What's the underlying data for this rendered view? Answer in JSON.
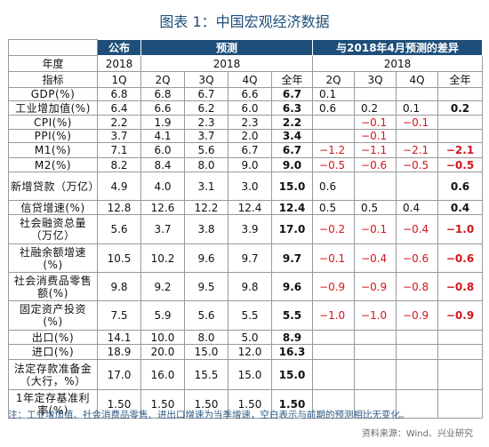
{
  "title": "图表 1：中国宏观经济数据",
  "header": {
    "group_labels": [
      "公布",
      "预测",
      "与2018年4月预测的差异"
    ],
    "year_row_label": "年度",
    "years": [
      "2018",
      "2018",
      "2018"
    ],
    "indicator_label": "指标",
    "sub_labels": [
      "1Q",
      "2Q",
      "3Q",
      "4Q",
      "全年",
      "2Q",
      "3Q",
      "4Q",
      "全年"
    ]
  },
  "rows": [
    {
      "label": "GDP(%)",
      "vals": [
        "6.8",
        "6.8",
        "6.7",
        "6.6",
        "6.7",
        "0.1",
        "",
        "",
        ""
      ]
    },
    {
      "label": "工业增加值(%)",
      "vals": [
        "6.4",
        "6.6",
        "6.2",
        "6.0",
        "6.3",
        "0.6",
        "0.2",
        "0.1",
        "0.2"
      ]
    },
    {
      "label": "CPI(%)",
      "vals": [
        "2.2",
        "1.9",
        "2.3",
        "2.3",
        "2.2",
        "",
        "−0.1",
        "−0.1",
        ""
      ]
    },
    {
      "label": "PPI(%)",
      "vals": [
        "3.7",
        "4.1",
        "3.7",
        "2.0",
        "3.4",
        "",
        "−0.1",
        "",
        ""
      ]
    },
    {
      "label": "M1(%)",
      "vals": [
        "7.1",
        "6.0",
        "5.6",
        "6.7",
        "6.7",
        "−1.2",
        "−1.1",
        "−2.1",
        "−2.1"
      ]
    },
    {
      "label": "M2(%)",
      "vals": [
        "8.2",
        "8.4",
        "8.0",
        "9.0",
        "9.0",
        "−0.5",
        "−0.6",
        "−0.5",
        "−0.5"
      ]
    },
    {
      "label": "新增贷款（万亿）",
      "vals": [
        "4.9",
        "4.0",
        "3.1",
        "3.0",
        "15.0",
        "0.6",
        "",
        "",
        "0.6"
      ]
    },
    {
      "label": "信贷增速(%)",
      "vals": [
        "12.8",
        "12.6",
        "12.2",
        "12.4",
        "12.4",
        "0.5",
        "0.5",
        "0.4",
        "0.4"
      ]
    },
    {
      "label": "社会融资总量（万亿）",
      "vals": [
        "5.6",
        "3.7",
        "3.8",
        "3.9",
        "17.0",
        "−0.2",
        "−0.1",
        "−0.4",
        "−1.0"
      ]
    },
    {
      "label": "社融余额增速(%)",
      "vals": [
        "10.5",
        "10.2",
        "9.6",
        "9.7",
        "9.7",
        "−0.1",
        "−0.4",
        "−0.6",
        "−0.6"
      ]
    },
    {
      "label": "社会消费品零售额(%)",
      "vals": [
        "9.8",
        "9.2",
        "9.5",
        "9.8",
        "9.6",
        "−0.9",
        "−0.9",
        "−0.8",
        "−0.8"
      ]
    },
    {
      "label": "固定资产投资(%)",
      "vals": [
        "7.5",
        "5.9",
        "5.6",
        "5.5",
        "5.5",
        "−1.0",
        "−1.0",
        "−0.9",
        "−0.9"
      ]
    },
    {
      "label": "出口(%)",
      "vals": [
        "14.1",
        "10.0",
        "8.0",
        "5.0",
        "8.9",
        "",
        "",
        "",
        ""
      ]
    },
    {
      "label": "进口(%)",
      "vals": [
        "18.9",
        "20.0",
        "15.0",
        "12.0",
        "16.3",
        "",
        "",
        "",
        ""
      ]
    },
    {
      "label": "法定存款准备金（大行，%）",
      "vals": [
        "17.0",
        "16.0",
        "15.5",
        "15.0",
        "15.0",
        "",
        "",
        "",
        ""
      ]
    },
    {
      "label": "1年定存基准利率(%)",
      "vals": [
        "1.50",
        "1.50",
        "1.50",
        "1.50",
        "1.50",
        "",
        "",
        "",
        ""
      ]
    }
  ],
  "note": "注：工业增加值、社会消费品零售、进出口增速为当季增速，空白表示与前期的预测相比无变化。",
  "source": "资料来源：Wind、兴业研究"
}
